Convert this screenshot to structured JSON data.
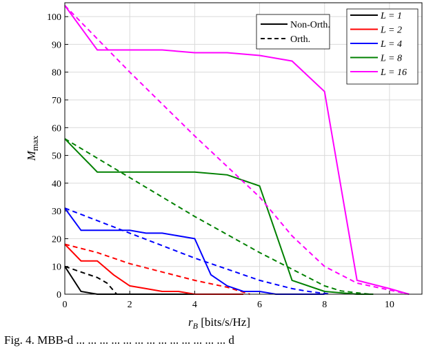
{
  "caption": "Fig. 4.   MBB-d ... ... ... ... ... ... ... ... ... ... ... ... ... d",
  "chart_data": {
    "type": "line",
    "xlabel": "r_B [bits/s/Hz]",
    "ylabel": "M_max",
    "xlim": [
      0,
      11
    ],
    "ylim": [
      0,
      105
    ],
    "xticks": [
      0,
      2,
      4,
      6,
      8,
      10
    ],
    "yticks": [
      0,
      10,
      20,
      30,
      40,
      50,
      60,
      70,
      80,
      90,
      100
    ],
    "grid": true,
    "legend_style": [
      {
        "label": "Non-Orth.",
        "dash": "solid"
      },
      {
        "label": "Orth.",
        "dash": "dashed"
      }
    ],
    "series": [
      {
        "name": "L = 1",
        "color": "#000000",
        "nonorth": [
          [
            0,
            10
          ],
          [
            0.5,
            1
          ],
          [
            1,
            0
          ],
          [
            2,
            0
          ],
          [
            3,
            0
          ],
          [
            4,
            0
          ],
          [
            4.2,
            0
          ]
        ],
        "orth": [
          [
            0,
            10
          ],
          [
            0.5,
            8
          ],
          [
            1,
            6
          ],
          [
            1.3,
            4
          ],
          [
            1.6,
            0
          ]
        ]
      },
      {
        "name": "L = 2",
        "color": "#ff0000",
        "nonorth": [
          [
            0,
            18
          ],
          [
            0.5,
            12
          ],
          [
            1,
            12
          ],
          [
            1.5,
            7
          ],
          [
            2,
            3
          ],
          [
            2.5,
            2
          ],
          [
            3,
            1
          ],
          [
            3.5,
            1
          ],
          [
            4,
            0
          ],
          [
            5,
            0
          ],
          [
            5.5,
            0
          ]
        ],
        "orth": [
          [
            0,
            18
          ],
          [
            1,
            15
          ],
          [
            2,
            11
          ],
          [
            3,
            8
          ],
          [
            4,
            5
          ],
          [
            5,
            2.5
          ],
          [
            5.7,
            0
          ]
        ]
      },
      {
        "name": "L = 4",
        "color": "#0000ff",
        "nonorth": [
          [
            0,
            31
          ],
          [
            0.5,
            23
          ],
          [
            1,
            23
          ],
          [
            2,
            23
          ],
          [
            2.5,
            22
          ],
          [
            3,
            22
          ],
          [
            4,
            20
          ],
          [
            4.5,
            7
          ],
          [
            5,
            3
          ],
          [
            5.5,
            1
          ],
          [
            6,
            1
          ],
          [
            6.5,
            0
          ],
          [
            8,
            0
          ]
        ],
        "orth": [
          [
            0,
            31
          ],
          [
            1,
            26.5
          ],
          [
            2,
            22
          ],
          [
            3,
            17.5
          ],
          [
            4,
            13
          ],
          [
            5,
            9
          ],
          [
            6,
            5
          ],
          [
            7,
            2
          ],
          [
            7.5,
            1
          ],
          [
            8.2,
            0
          ]
        ]
      },
      {
        "name": "L = 8",
        "color": "#008000",
        "nonorth": [
          [
            0,
            56
          ],
          [
            1,
            44
          ],
          [
            2,
            44
          ],
          [
            3,
            44
          ],
          [
            4,
            44
          ],
          [
            5,
            43
          ],
          [
            6,
            39
          ],
          [
            7,
            5
          ],
          [
            8,
            1
          ],
          [
            9,
            0
          ],
          [
            9.5,
            0
          ]
        ],
        "orth": [
          [
            0,
            56
          ],
          [
            1,
            49
          ],
          [
            2,
            42
          ],
          [
            3,
            35
          ],
          [
            4,
            28
          ],
          [
            5,
            21.5
          ],
          [
            6,
            15
          ],
          [
            7,
            9
          ],
          [
            8,
            3
          ],
          [
            8.5,
            1.2
          ],
          [
            9,
            0.5
          ],
          [
            9.4,
            0
          ]
        ]
      },
      {
        "name": "L = 16",
        "color": "#ff00ff",
        "nonorth": [
          [
            0,
            104
          ],
          [
            1,
            88
          ],
          [
            2,
            88
          ],
          [
            3,
            88
          ],
          [
            4,
            87
          ],
          [
            5,
            87
          ],
          [
            6,
            86
          ],
          [
            7,
            84
          ],
          [
            8,
            73
          ],
          [
            9,
            5
          ],
          [
            10,
            2
          ],
          [
            10.6,
            0
          ]
        ],
        "orth": [
          [
            0,
            104
          ],
          [
            2,
            80
          ],
          [
            4,
            57
          ],
          [
            6,
            35
          ],
          [
            7,
            21
          ],
          [
            8,
            10
          ],
          [
            9,
            4
          ],
          [
            10,
            1.5
          ],
          [
            10.6,
            0
          ]
        ]
      }
    ]
  }
}
